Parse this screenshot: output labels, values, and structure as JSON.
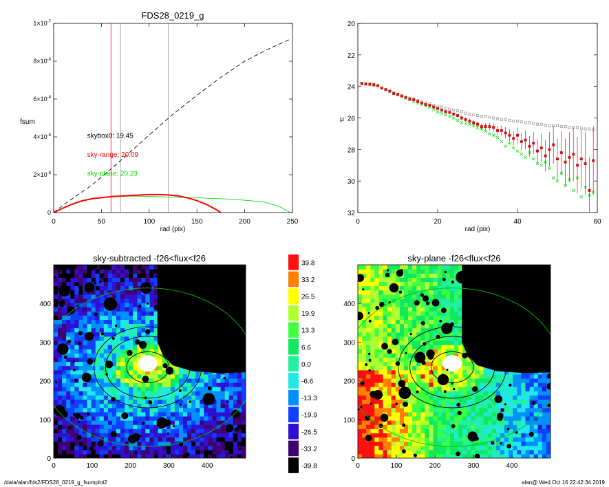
{
  "footer": {
    "path": "/data/alan/fds2/FDS28_0219_g_fsumplot2",
    "stamp": "alan@  Wed Oct 16 22:42:34 2019"
  },
  "colors": {
    "red": "#ff0000",
    "green": "#00e000",
    "gray": "#999999",
    "black": "#000000"
  },
  "chart_data": [
    {
      "id": "fsum",
      "type": "line",
      "title": "FDS28_0219_g",
      "xlabel": "rad (pix)",
      "ylabel": "fsum",
      "xlim": [
        0,
        250
      ],
      "ylim": [
        0,
        1e-07
      ],
      "xticks": [
        0,
        50,
        100,
        150,
        200,
        250
      ],
      "yticks": [
        {
          "v": 0,
          "m": "0",
          "e": ""
        },
        {
          "v": 2e-08,
          "m": "2×10",
          "e": "-8"
        },
        {
          "v": 4e-08,
          "m": "4×10",
          "e": "-8"
        },
        {
          "v": 6e-08,
          "m": "6×10",
          "e": "-8"
        },
        {
          "v": 8e-08,
          "m": "8×10",
          "e": "-8"
        },
        {
          "v": 1e-07,
          "m": "1×10",
          "e": "-7"
        }
      ],
      "vlines": [
        {
          "x": 60,
          "color": "#ff0000"
        },
        {
          "x": 70,
          "color": "#999999"
        },
        {
          "x": 120,
          "color": "#999999"
        }
      ],
      "annotations": [
        {
          "text": "skybox0: 19.45",
          "color": "#000000",
          "x": 35,
          "y": 3.95e-08
        },
        {
          "text": "sky-range: 20.09",
          "color": "#ff0000",
          "x": 35,
          "y": 2.95e-08
        },
        {
          "text": "sky-plane: 20.23",
          "color": "#00e000",
          "x": 35,
          "y": 1.95e-08
        }
      ],
      "series": [
        {
          "style": "dashed",
          "color": "#000000",
          "x": [
            0,
            10,
            20,
            30,
            40,
            60,
            80,
            100,
            125,
            150,
            175,
            200,
            225,
            247
          ],
          "y": [
            0,
            4e-09,
            7.5e-09,
            1.1e-08,
            1.45e-08,
            2.3e-08,
            3.2e-08,
            4.1e-08,
            5.2e-08,
            6.2e-08,
            7.15e-08,
            8e-08,
            8.65e-08,
            9.15e-08
          ]
        },
        {
          "style": "solid",
          "color": "#00e000",
          "x": [
            0,
            10,
            20,
            30,
            40,
            60,
            80,
            100,
            120,
            150,
            180,
            200,
            220,
            235,
            247
          ],
          "y": [
            0,
            2.5e-09,
            4.8e-09,
            6.4e-09,
            7.4e-09,
            8.3e-09,
            8.7e-09,
            8.6e-09,
            8.2e-09,
            7.8e-09,
            7.2e-09,
            6.5e-09,
            5.6e-09,
            3.5e-09,
            2e-10
          ]
        },
        {
          "style": "thick",
          "color": "#ff0000",
          "x": [
            0,
            10,
            20,
            30,
            40,
            60,
            80,
            100,
            110,
            120,
            130,
            140,
            150,
            160,
            170,
            175
          ],
          "y": [
            0,
            2.4e-09,
            4.6e-09,
            6.2e-09,
            7.3e-09,
            8.4e-09,
            9e-09,
            9.5e-09,
            9.5e-09,
            9.3e-09,
            8.8e-09,
            7.8e-09,
            6.3e-09,
            4.3e-09,
            1.6e-09,
            0.0
          ]
        }
      ]
    },
    {
      "id": "mu",
      "type": "scatter",
      "title": "",
      "xlabel": "rad (pix)",
      "ylabel": "μ",
      "xlim": [
        0,
        60
      ],
      "ylim": [
        32,
        20
      ],
      "xticks": [
        0,
        20,
        40,
        60
      ],
      "yticks": [
        20,
        22,
        24,
        26,
        28,
        30,
        32
      ],
      "series": [
        {
          "marker": "square",
          "color": "#999999",
          "x": [
            1,
            2,
            3,
            4,
            5,
            6,
            7,
            8,
            9,
            10,
            11,
            12,
            13,
            14,
            15,
            16,
            17,
            18,
            19,
            20,
            21,
            22,
            23,
            24,
            25,
            26,
            27,
            28,
            29,
            30,
            31,
            32,
            33,
            34,
            35,
            36,
            37,
            38,
            39,
            40,
            41,
            42,
            43,
            44,
            45,
            46,
            47,
            48,
            49,
            50,
            51,
            52,
            53,
            54,
            55,
            56,
            57,
            58,
            59
          ],
          "y": [
            23.85,
            23.85,
            23.9,
            23.9,
            23.95,
            24.1,
            24.2,
            24.3,
            24.4,
            24.5,
            24.6,
            24.7,
            24.75,
            24.8,
            24.9,
            25.0,
            25.05,
            25.1,
            25.2,
            25.3,
            25.3,
            25.4,
            25.45,
            25.5,
            25.55,
            25.6,
            25.7,
            25.75,
            25.8,
            25.85,
            25.9,
            25.9,
            25.95,
            26.0,
            26.05,
            26.1,
            26.1,
            26.15,
            26.2,
            26.2,
            26.25,
            26.3,
            26.3,
            26.35,
            26.4,
            26.4,
            26.45,
            26.5,
            26.5,
            26.5,
            26.55,
            26.55,
            26.6,
            26.6,
            26.6,
            26.65,
            26.7,
            26.7,
            26.75
          ]
        },
        {
          "marker": "cross",
          "color": "#00e000",
          "x": [
            1,
            2,
            3,
            4,
            5,
            6,
            7,
            8,
            9,
            10,
            11,
            12,
            13,
            14,
            15,
            16,
            17,
            18,
            19,
            20,
            21,
            22,
            23,
            24,
            25,
            26,
            27,
            28,
            29,
            30,
            31,
            32,
            33,
            34,
            35,
            36,
            37,
            38,
            39,
            40,
            41,
            42,
            43,
            44,
            45,
            46,
            47,
            48,
            49,
            50,
            51,
            52,
            53,
            54,
            55,
            56,
            57,
            58,
            59
          ],
          "y": [
            23.8,
            23.8,
            23.85,
            23.85,
            23.95,
            24.1,
            24.2,
            24.3,
            24.45,
            24.55,
            24.65,
            24.75,
            24.85,
            24.95,
            25.05,
            25.15,
            25.25,
            25.3,
            25.45,
            25.6,
            25.7,
            25.8,
            25.9,
            26.0,
            26.15,
            26.3,
            26.35,
            26.4,
            26.5,
            26.6,
            26.7,
            26.85,
            27.0,
            27.1,
            27.25,
            27.5,
            27.8,
            27.6,
            27.9,
            28.1,
            28.3,
            28.5,
            28.2,
            28.6,
            28.9,
            29.0,
            28.8,
            29.2,
            29.8,
            30.0,
            29.5,
            30.3,
            29.9,
            30.6,
            29.8,
            31.0,
            30.4,
            30.9,
            30.7
          ]
        },
        {
          "marker": "square-err",
          "color": "#ff0000",
          "x": [
            1,
            2,
            3,
            4,
            5,
            6,
            7,
            8,
            9,
            10,
            11,
            12,
            13,
            14,
            15,
            16,
            17,
            18,
            19,
            20,
            21,
            22,
            23,
            24,
            25,
            26,
            27,
            28,
            29,
            30,
            31,
            32,
            33,
            34,
            35,
            36,
            37,
            38,
            39,
            40,
            41,
            42,
            43,
            44,
            45,
            46,
            47,
            48,
            49,
            50,
            51,
            52,
            53,
            54,
            55,
            56,
            57,
            58,
            59
          ],
          "y": [
            23.8,
            23.85,
            23.85,
            23.9,
            23.95,
            24.1,
            24.2,
            24.3,
            24.45,
            24.5,
            24.6,
            24.7,
            24.8,
            24.85,
            24.95,
            25.05,
            25.15,
            25.2,
            25.3,
            25.4,
            25.5,
            25.6,
            25.65,
            25.75,
            25.85,
            26.0,
            26.1,
            26.2,
            26.3,
            26.4,
            26.55,
            26.55,
            26.55,
            26.6,
            26.8,
            26.8,
            26.95,
            27.1,
            27.3,
            27.1,
            27.5,
            27.4,
            27.8,
            27.6,
            28.1,
            27.9,
            28.4,
            28.0,
            27.7,
            28.6,
            28.2,
            28.8,
            28.5,
            28.3,
            29.0,
            28.6,
            28.9,
            30.6,
            28.7
          ],
          "err": [
            0.02,
            0.02,
            0.02,
            0.02,
            0.02,
            0.03,
            0.03,
            0.03,
            0.04,
            0.04,
            0.04,
            0.05,
            0.05,
            0.05,
            0.06,
            0.06,
            0.07,
            0.07,
            0.08,
            0.08,
            0.09,
            0.1,
            0.1,
            0.11,
            0.12,
            0.13,
            0.14,
            0.15,
            0.16,
            0.18,
            0.2,
            0.22,
            0.24,
            0.26,
            0.3,
            0.32,
            0.36,
            0.4,
            0.45,
            0.5,
            0.55,
            0.6,
            0.65,
            0.7,
            0.8,
            0.9,
            1.0,
            1.1,
            1.2,
            1.3,
            1.4,
            1.5,
            1.6,
            1.7,
            1.8,
            1.9,
            2.0,
            2.1,
            2.2
          ]
        }
      ]
    },
    {
      "id": "map-left",
      "type": "heatmap",
      "title": "sky-subtracted -f26<flux<f26",
      "xlim": [
        0,
        500
      ],
      "ylim": [
        0,
        500
      ],
      "xticks": [
        0,
        100,
        200,
        300,
        400
      ],
      "yticks": [
        0,
        100,
        200,
        300,
        400
      ],
      "center": [
        245,
        235
      ],
      "ellipses": [
        {
          "a": 55,
          "b": 40,
          "color": "#000000"
        },
        {
          "a": 110,
          "b": 80,
          "color": "#000000"
        },
        {
          "a": 140,
          "b": 105,
          "color": "#000000"
        },
        {
          "a": 280,
          "b": 205,
          "color": "#00c000"
        }
      ]
    },
    {
      "id": "map-right",
      "type": "heatmap",
      "title": "sky-plane -f26<flux<f26",
      "xlim": [
        0,
        500
      ],
      "ylim": [
        0,
        500
      ],
      "xticks": [
        0,
        100,
        200,
        300,
        400
      ],
      "yticks": [
        0,
        100,
        200,
        300,
        400
      ],
      "center": [
        245,
        235
      ],
      "ellipses": [
        {
          "a": 55,
          "b": 40,
          "color": "#000000"
        },
        {
          "a": 110,
          "b": 80,
          "color": "#000000"
        },
        {
          "a": 140,
          "b": 105,
          "color": "#000000"
        },
        {
          "a": 280,
          "b": 205,
          "color": "#00c000"
        }
      ]
    }
  ],
  "colorbar": {
    "labels": [
      "39.8",
      "33.2",
      "26.5",
      "19.9",
      "13.3",
      "6.6",
      "0.0",
      "-6.6",
      "-13.3",
      "-19.9",
      "-26.5",
      "-33.2",
      "-39.8"
    ],
    "colors": [
      "#ff1010",
      "#ff8000",
      "#ffff00",
      "#b0ff30",
      "#40ff40",
      "#10e860",
      "#20f0a0",
      "#20e8e8",
      "#0090ff",
      "#1040ff",
      "#3010d0",
      "#400070",
      "#000000"
    ]
  }
}
